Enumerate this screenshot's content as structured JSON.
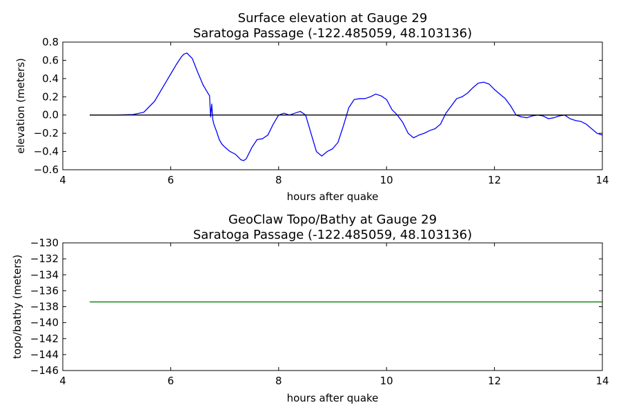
{
  "chart_data": [
    {
      "type": "line",
      "title": "Surface elevation at Gauge 29",
      "subtitle": "Saratoga Passage  (-122.485059, 48.103136)",
      "xlabel": "hours after quake",
      "ylabel": "elevation (meters)",
      "xlim": [
        4,
        14
      ],
      "ylim": [
        -0.6,
        0.8
      ],
      "xticks": [
        "4",
        "6",
        "8",
        "10",
        "12",
        "14"
      ],
      "yticks": [
        "−0.6",
        "−0.4",
        "−0.2",
        "0.0",
        "0.2",
        "0.4",
        "0.6",
        "0.8"
      ],
      "grid": false,
      "series": [
        {
          "color": "#0000ff",
          "x": [
            4.5,
            5.0,
            5.3,
            5.5,
            5.7,
            5.9,
            6.0,
            6.1,
            6.2,
            6.25,
            6.3,
            6.4,
            6.5,
            6.6,
            6.7,
            6.72,
            6.74,
            6.76,
            6.78,
            6.8,
            6.85,
            6.9,
            6.95,
            7.0,
            7.1,
            7.2,
            7.3,
            7.35,
            7.4,
            7.5,
            7.6,
            7.7,
            7.8,
            7.9,
            8.0,
            8.1,
            8.2,
            8.3,
            8.4,
            8.5,
            8.6,
            8.7,
            8.8,
            8.9,
            9.0,
            9.1,
            9.2,
            9.3,
            9.4,
            9.5,
            9.6,
            9.7,
            9.8,
            9.9,
            10.0,
            10.1,
            10.2,
            10.3,
            10.4,
            10.5,
            10.6,
            10.7,
            10.8,
            10.9,
            11.0,
            11.1,
            11.2,
            11.3,
            11.4,
            11.5,
            11.6,
            11.7,
            11.8,
            11.9,
            12.0,
            12.1,
            12.2,
            12.3,
            12.4,
            12.5,
            12.6,
            12.7,
            12.8,
            12.9,
            13.0,
            13.1,
            13.2,
            13.3,
            13.4,
            13.5,
            13.6,
            13.7,
            13.8,
            13.9,
            14.0
          ],
          "y": [
            0.0,
            0.0,
            0.005,
            0.03,
            0.15,
            0.35,
            0.45,
            0.55,
            0.64,
            0.67,
            0.68,
            0.62,
            0.47,
            0.33,
            0.23,
            0.21,
            -0.02,
            0.12,
            -0.05,
            -0.1,
            -0.18,
            -0.27,
            -0.32,
            -0.35,
            -0.4,
            -0.43,
            -0.49,
            -0.5,
            -0.48,
            -0.36,
            -0.27,
            -0.26,
            -0.22,
            -0.1,
            0.0,
            0.02,
            0.0,
            0.02,
            0.04,
            0.0,
            -0.2,
            -0.4,
            -0.45,
            -0.4,
            -0.37,
            -0.3,
            -0.12,
            0.08,
            0.17,
            0.18,
            0.18,
            0.2,
            0.23,
            0.21,
            0.17,
            0.06,
            0.0,
            -0.08,
            -0.2,
            -0.25,
            -0.22,
            -0.2,
            -0.17,
            -0.15,
            -0.1,
            0.02,
            0.1,
            0.18,
            0.2,
            0.24,
            0.3,
            0.35,
            0.36,
            0.34,
            0.28,
            0.23,
            0.18,
            0.1,
            0.0,
            -0.02,
            -0.03,
            -0.01,
            0.0,
            -0.01,
            -0.04,
            -0.03,
            -0.01,
            0.0,
            -0.04,
            -0.06,
            -0.07,
            -0.1,
            -0.15,
            -0.2,
            -0.22
          ]
        },
        {
          "color": "#000000",
          "x": [
            4.5,
            14.0
          ],
          "y": [
            0.0,
            0.0
          ]
        }
      ]
    },
    {
      "type": "line",
      "title": "GeoClaw Topo/Bathy at Gauge 29",
      "subtitle": "Saratoga Passage  (-122.485059, 48.103136)",
      "xlabel": "hours after quake",
      "ylabel": "topo/bathy (meters)",
      "xlim": [
        4,
        14
      ],
      "ylim": [
        -146,
        -130
      ],
      "xticks": [
        "4",
        "6",
        "8",
        "10",
        "12",
        "14"
      ],
      "yticks": [
        "−146",
        "−144",
        "−142",
        "−140",
        "−138",
        "−136",
        "−134",
        "−132",
        "−130"
      ],
      "grid": false,
      "series": [
        {
          "color": "#008000",
          "x": [
            4.5,
            14.0
          ],
          "y": [
            -137.4,
            -137.4
          ]
        }
      ]
    }
  ]
}
